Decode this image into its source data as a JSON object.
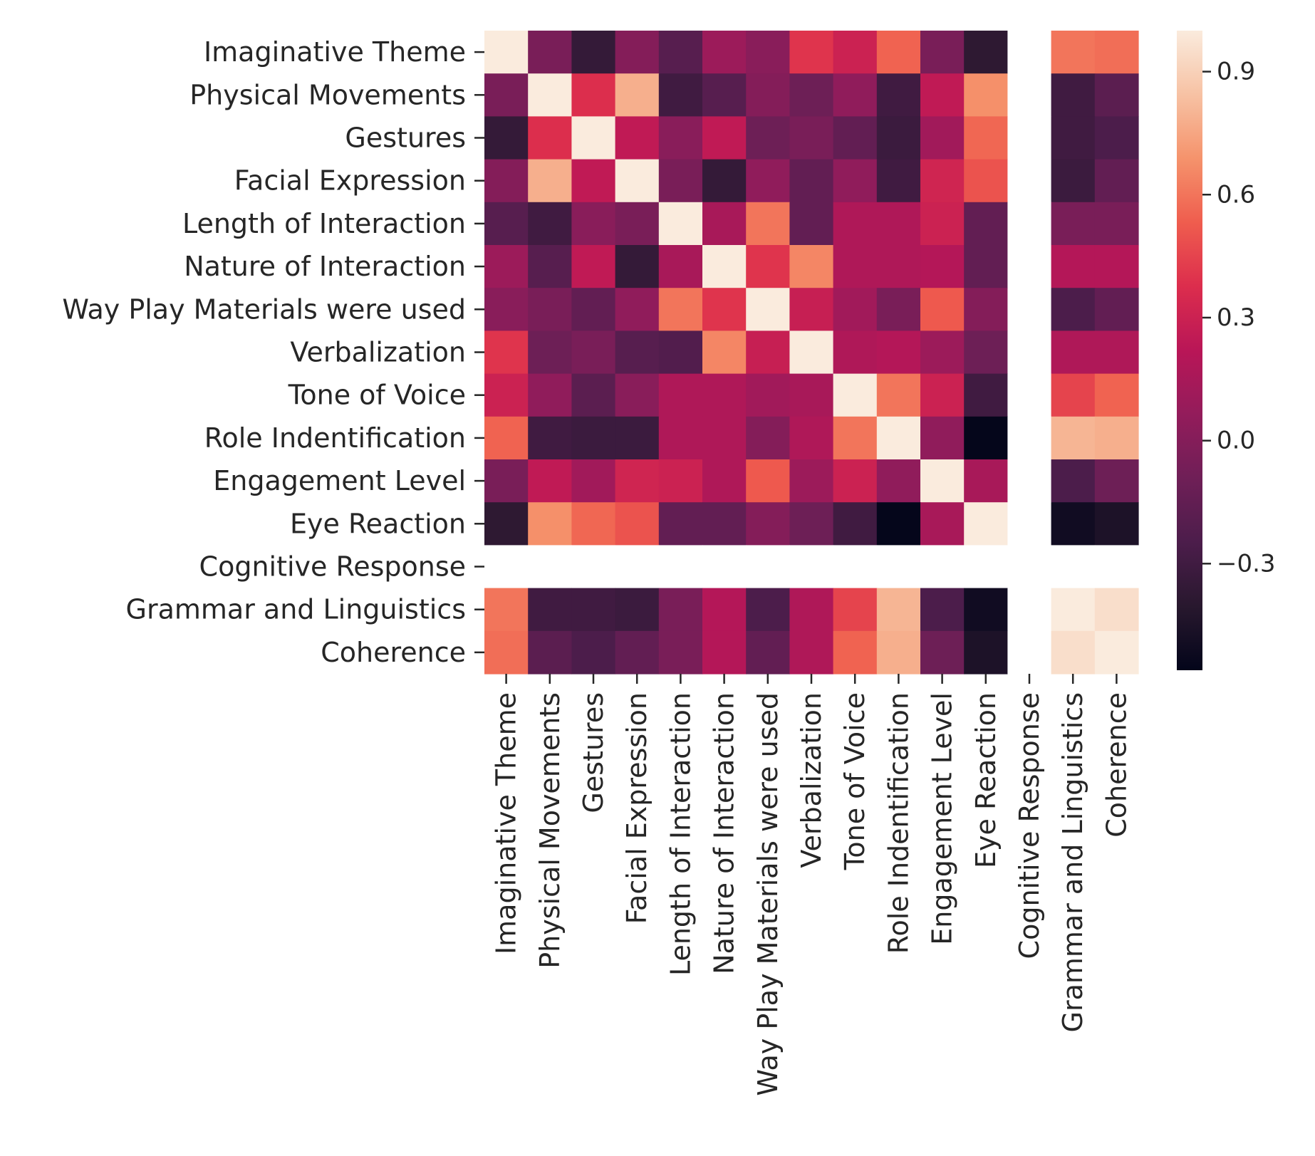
{
  "chart_data": {
    "type": "heatmap",
    "title": "",
    "xlabel": "",
    "ylabel": "",
    "row_labels": [
      "Imaginative Theme",
      "Physical Movements",
      "Gestures",
      "Facial Expression",
      "Length of Interaction",
      "Nature of Interaction",
      "Way Play Materials were used",
      "Verbalization",
      "Tone of Voice",
      "Role Indentification",
      "Engagement Level",
      "Eye Reaction",
      "Cognitive Response",
      "Grammar and Linguistics",
      "Coherence"
    ],
    "col_labels": [
      "Imaginative Theme",
      "Physical Movements",
      "Gestures",
      "Facial Expression",
      "Length of Interaction",
      "Nature of Interaction",
      "Way Play Materials were used",
      "Verbalization",
      "Tone of Voice",
      "Role Indentification",
      "Engagement Level",
      "Eye Reaction",
      "Cognitive Response",
      "Grammar and Linguistics",
      "Coherence"
    ],
    "values": [
      [
        1.0,
        -0.05,
        -0.35,
        0.0,
        -0.2,
        0.1,
        0.02,
        0.4,
        0.3,
        0.55,
        -0.05,
        -0.38,
        null,
        0.6,
        0.58
      ],
      [
        -0.05,
        1.0,
        0.38,
        0.78,
        -0.3,
        -0.2,
        0.0,
        -0.1,
        0.05,
        -0.3,
        0.25,
        0.68,
        null,
        -0.3,
        -0.18
      ],
      [
        -0.35,
        0.38,
        1.0,
        0.25,
        0.02,
        0.25,
        -0.1,
        -0.05,
        -0.15,
        -0.32,
        0.12,
        0.56,
        null,
        -0.3,
        -0.25
      ],
      [
        0.0,
        0.78,
        0.25,
        1.0,
        -0.05,
        -0.35,
        0.05,
        -0.15,
        0.05,
        -0.3,
        0.32,
        0.5,
        null,
        -0.32,
        -0.15
      ],
      [
        -0.2,
        -0.3,
        0.02,
        -0.05,
        1.0,
        0.15,
        0.6,
        -0.15,
        0.18,
        0.18,
        0.3,
        -0.15,
        null,
        -0.05,
        -0.05
      ],
      [
        0.1,
        -0.2,
        0.25,
        -0.35,
        0.15,
        1.0,
        0.4,
        0.65,
        0.18,
        0.18,
        0.2,
        -0.15,
        null,
        0.2,
        0.2
      ],
      [
        0.02,
        -0.05,
        -0.15,
        0.05,
        0.6,
        0.4,
        1.0,
        0.28,
        0.12,
        -0.05,
        0.52,
        0.0,
        null,
        -0.25,
        -0.15
      ],
      [
        0.4,
        -0.1,
        -0.05,
        -0.2,
        -0.22,
        0.65,
        0.28,
        1.0,
        0.18,
        0.2,
        0.1,
        -0.1,
        null,
        0.18,
        0.18
      ],
      [
        0.3,
        0.05,
        -0.18,
        0.02,
        0.18,
        0.18,
        0.12,
        0.15,
        1.0,
        0.6,
        0.3,
        -0.3,
        null,
        0.45,
        0.55
      ],
      [
        0.55,
        -0.3,
        -0.32,
        -0.32,
        0.18,
        0.18,
        0.0,
        0.18,
        0.6,
        1.0,
        0.05,
        -0.55,
        null,
        0.8,
        0.78
      ],
      [
        -0.05,
        0.25,
        0.12,
        0.32,
        0.3,
        0.18,
        0.52,
        0.1,
        0.3,
        0.05,
        1.0,
        0.15,
        null,
        -0.25,
        -0.1
      ],
      [
        -0.38,
        0.68,
        0.56,
        0.5,
        -0.15,
        -0.15,
        0.0,
        -0.1,
        -0.3,
        -0.55,
        0.15,
        1.0,
        null,
        -0.5,
        -0.45
      ],
      [
        null,
        null,
        null,
        null,
        null,
        null,
        null,
        null,
        null,
        null,
        null,
        null,
        null,
        null,
        null
      ],
      [
        0.6,
        -0.3,
        -0.3,
        -0.32,
        -0.05,
        0.2,
        -0.25,
        0.18,
        0.45,
        0.8,
        -0.25,
        -0.5,
        null,
        1.0,
        0.95
      ],
      [
        0.58,
        -0.18,
        -0.25,
        -0.15,
        -0.05,
        0.2,
        -0.15,
        0.18,
        0.55,
        0.78,
        -0.1,
        -0.45,
        null,
        0.95,
        1.0
      ]
    ],
    "vmin": -0.56,
    "vmax": 1.0,
    "colormap": "rocket",
    "colorbar_ticks": [
      0.9,
      0.6,
      0.3,
      0.0,
      -0.3
    ],
    "colorbar_tick_labels": [
      "0.9",
      "0.6",
      "0.3",
      "0.0",
      "−0.3"
    ],
    "missing_color": "#ffffff"
  }
}
